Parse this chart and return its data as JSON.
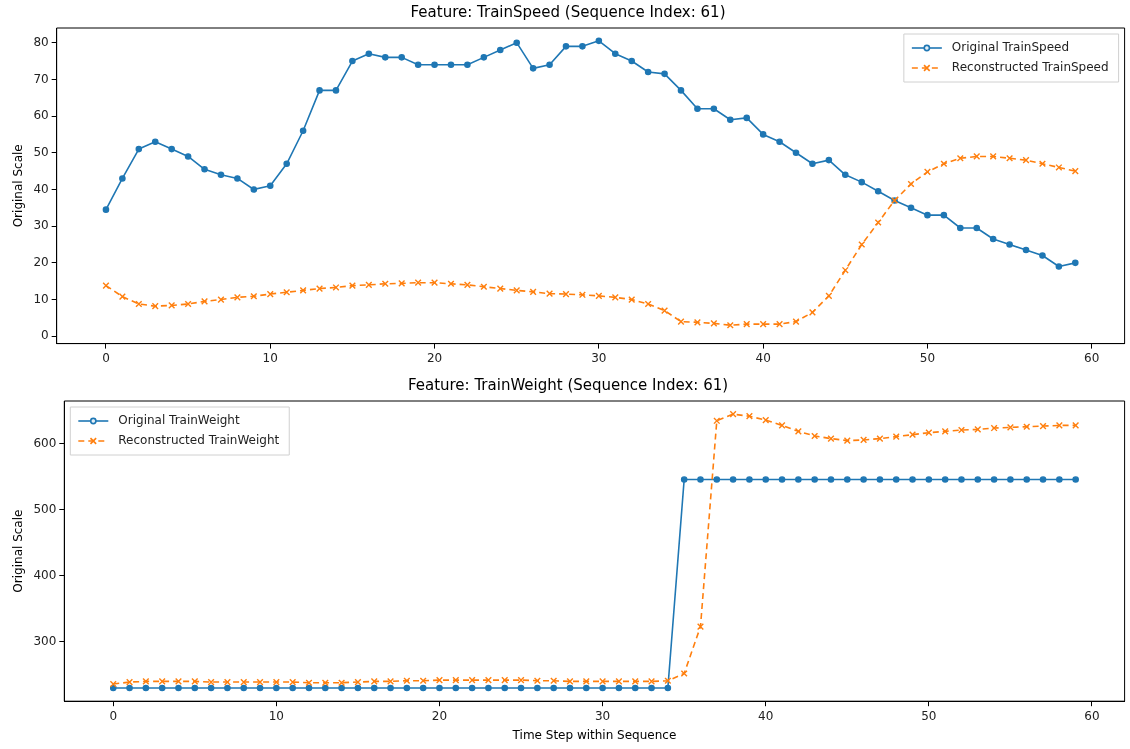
{
  "chart_data": [
    {
      "type": "line",
      "title": "Feature: TrainSpeed (Sequence Index: 61)",
      "ylabel": "Original Scale",
      "legend": "top right",
      "grid": false,
      "x": [
        0,
        1,
        2,
        3,
        4,
        5,
        6,
        7,
        8,
        9,
        10,
        11,
        12,
        13,
        14,
        15,
        16,
        17,
        18,
        19,
        20,
        21,
        22,
        23,
        24,
        25,
        26,
        27,
        28,
        29,
        30,
        31,
        32,
        33,
        34,
        35,
        36,
        37,
        38,
        39,
        40,
        41,
        42,
        43,
        44,
        45,
        46,
        47,
        48,
        49,
        50,
        51,
        52,
        53,
        54,
        55,
        56,
        57,
        58,
        59
      ],
      "xlim": [
        -3,
        62
      ],
      "xticks": [
        0,
        10,
        20,
        30,
        40,
        50,
        60
      ],
      "ylim": [
        -2,
        84
      ],
      "yticks": [
        0,
        10,
        20,
        30,
        40,
        50,
        60,
        70,
        80
      ],
      "series": [
        {
          "name": "Original TrainSpeed",
          "color": "#1f77b4",
          "marker": "circle",
          "line_style": "solid",
          "values": [
            34.5,
            43,
            51,
            53,
            51,
            49,
            45.5,
            44,
            43,
            40,
            41,
            47,
            56,
            67,
            67,
            75,
            77,
            76,
            76,
            74,
            74,
            74,
            74,
            76,
            78,
            80,
            73,
            74,
            79,
            79,
            80.5,
            77,
            75,
            72,
            71.5,
            67,
            62,
            62,
            59,
            59.5,
            55,
            53,
            50,
            47,
            48,
            44,
            42,
            39.5,
            37,
            35,
            33,
            33,
            29.5,
            29.5,
            26.5,
            25,
            23.5,
            22,
            19,
            20
          ]
        },
        {
          "name": "Reconstructed TrainSpeed",
          "color": "#ff7f0e",
          "marker": "cross",
          "line_style": "dashed",
          "values": [
            13.8,
            10.8,
            8.8,
            8.2,
            8.4,
            8.8,
            9.5,
            10,
            10.6,
            10.9,
            11.5,
            12,
            12.5,
            13,
            13.3,
            13.8,
            14,
            14.3,
            14.4,
            14.6,
            14.6,
            14.3,
            14,
            13.5,
            13,
            12.5,
            12.1,
            11.6,
            11.5,
            11.3,
            11,
            10.6,
            10,
            8.8,
            7,
            4,
            3.8,
            3.5,
            3,
            3.3,
            3.3,
            3.3,
            4,
            6.5,
            11,
            18,
            25,
            31,
            37,
            41.5,
            44.8,
            47,
            48.5,
            49,
            49,
            48.5,
            48,
            47,
            46,
            45
          ]
        }
      ]
    },
    {
      "type": "line",
      "title": "Feature: TrainWeight (Sequence Index: 61)",
      "xlabel": "Time Step within Sequence",
      "ylabel": "Original Scale",
      "legend": "top left",
      "grid": false,
      "x": [
        0,
        1,
        2,
        3,
        4,
        5,
        6,
        7,
        8,
        9,
        10,
        11,
        12,
        13,
        14,
        15,
        16,
        17,
        18,
        19,
        20,
        21,
        22,
        23,
        24,
        25,
        26,
        27,
        28,
        29,
        30,
        31,
        32,
        33,
        34,
        35,
        36,
        37,
        38,
        39,
        40,
        41,
        42,
        43,
        44,
        45,
        46,
        47,
        48,
        49,
        50,
        51,
        52,
        53,
        54,
        55,
        56,
        57,
        58,
        59
      ],
      "xlim": [
        -3,
        62
      ],
      "xticks": [
        0,
        10,
        20,
        30,
        40,
        50,
        60
      ],
      "ylim": [
        210,
        665
      ],
      "yticks": [
        300,
        400,
        500,
        600
      ],
      "series": [
        {
          "name": "Original TrainWeight",
          "color": "#1f77b4",
          "marker": "circle",
          "line_style": "solid",
          "values": [
            230,
            230,
            230,
            230,
            230,
            230,
            230,
            230,
            230,
            230,
            230,
            230,
            230,
            230,
            230,
            230,
            230,
            230,
            230,
            230,
            230,
            230,
            230,
            230,
            230,
            230,
            230,
            230,
            230,
            230,
            230,
            230,
            230,
            230,
            230,
            546,
            546,
            546,
            546,
            546,
            546,
            546,
            546,
            546,
            546,
            546,
            546,
            546,
            546,
            546,
            546,
            546,
            546,
            546,
            546,
            546,
            546,
            546,
            546,
            546
          ]
        },
        {
          "name": "Reconstructed TrainWeight",
          "color": "#ff7f0e",
          "marker": "cross",
          "line_style": "dashed",
          "values": [
            236,
            239,
            240,
            240,
            240,
            240,
            239,
            239,
            239,
            239,
            239,
            239,
            238,
            238,
            238,
            239,
            240,
            240,
            241,
            241,
            242,
            242,
            242,
            242,
            242,
            242,
            241,
            241,
            240,
            240,
            240,
            240,
            240,
            240,
            241,
            252,
            323,
            635,
            645,
            642,
            636,
            628,
            619,
            612,
            608,
            605,
            606,
            608,
            611,
            614,
            617,
            619,
            621,
            622,
            624,
            625,
            626,
            627,
            628,
            628
          ]
        }
      ]
    }
  ]
}
